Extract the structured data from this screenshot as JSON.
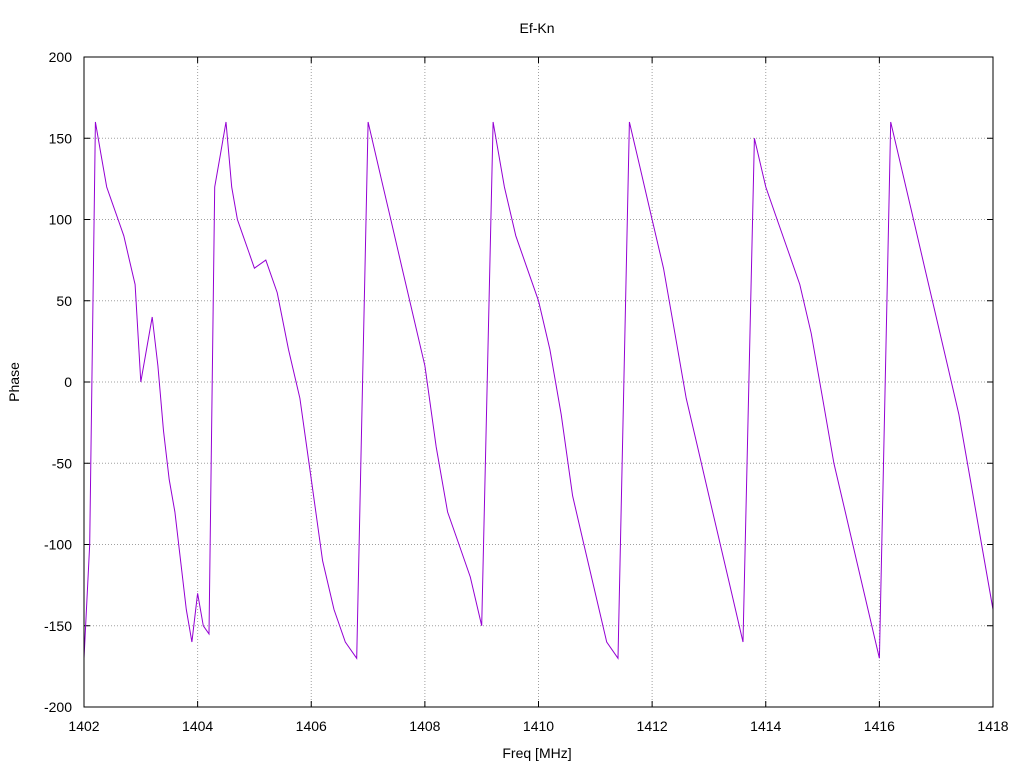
{
  "chart_data": {
    "type": "line",
    "title": "Ef-Kn",
    "xlabel": "Freq [MHz]",
    "ylabel": "Phase",
    "xlim": [
      1402,
      1418
    ],
    "ylim": [
      -200,
      200
    ],
    "xticks": [
      1402,
      1404,
      1406,
      1408,
      1410,
      1412,
      1414,
      1416,
      1418
    ],
    "yticks": [
      -200,
      -150,
      -100,
      -50,
      0,
      50,
      100,
      150,
      200
    ],
    "grid": true,
    "series": [
      {
        "color": "#9400d3",
        "x": [
          1402.0,
          1402.1,
          1402.2,
          1402.3,
          1402.4,
          1402.5,
          1402.6,
          1402.7,
          1402.8,
          1402.9,
          1403.0,
          1403.1,
          1403.2,
          1403.3,
          1403.4,
          1403.5,
          1403.6,
          1403.7,
          1403.8,
          1403.9,
          1404.0,
          1404.1,
          1404.2,
          1404.3,
          1404.4,
          1404.5,
          1404.6,
          1404.7,
          1404.8,
          1404.9,
          1405.0,
          1405.2,
          1405.4,
          1405.6,
          1405.8,
          1406.0,
          1406.2,
          1406.4,
          1406.6,
          1406.8,
          1407.0,
          1407.2,
          1407.4,
          1407.6,
          1407.8,
          1408.0,
          1408.2,
          1408.4,
          1408.6,
          1408.8,
          1409.0,
          1409.2,
          1409.4,
          1409.6,
          1409.8,
          1410.0,
          1410.2,
          1410.4,
          1410.6,
          1410.8,
          1411.0,
          1411.2,
          1411.4,
          1411.6,
          1411.8,
          1412.0,
          1412.2,
          1412.4,
          1412.6,
          1412.8,
          1413.0,
          1413.2,
          1413.4,
          1413.6,
          1413.8,
          1414.0,
          1414.2,
          1414.4,
          1414.6,
          1414.8,
          1415.0,
          1415.2,
          1415.4,
          1415.6,
          1415.8,
          1416.0,
          1416.2,
          1416.4,
          1416.6,
          1416.8,
          1417.0,
          1417.2,
          1417.4,
          1417.6,
          1417.8,
          1418.0
        ],
        "y": [
          -170,
          -100,
          160,
          140,
          120,
          110,
          100,
          90,
          75,
          60,
          0,
          20,
          40,
          10,
          -30,
          -60,
          -80,
          -110,
          -140,
          -160,
          -130,
          -150,
          -155,
          120,
          140,
          160,
          120,
          100,
          90,
          80,
          70,
          75,
          55,
          20,
          -10,
          -60,
          -110,
          -140,
          -160,
          -170,
          160,
          130,
          100,
          70,
          40,
          10,
          -40,
          -80,
          -100,
          -120,
          -150,
          160,
          120,
          90,
          70,
          50,
          20,
          -20,
          -70,
          -100,
          -130,
          -160,
          -170,
          160,
          130,
          100,
          70,
          30,
          -10,
          -40,
          -70,
          -100,
          -130,
          -160,
          150,
          120,
          100,
          80,
          60,
          30,
          -10,
          -50,
          -80,
          -110,
          -140,
          -170,
          160,
          130,
          100,
          70,
          40,
          10,
          -20,
          -60,
          -100,
          -140
        ]
      }
    ]
  }
}
